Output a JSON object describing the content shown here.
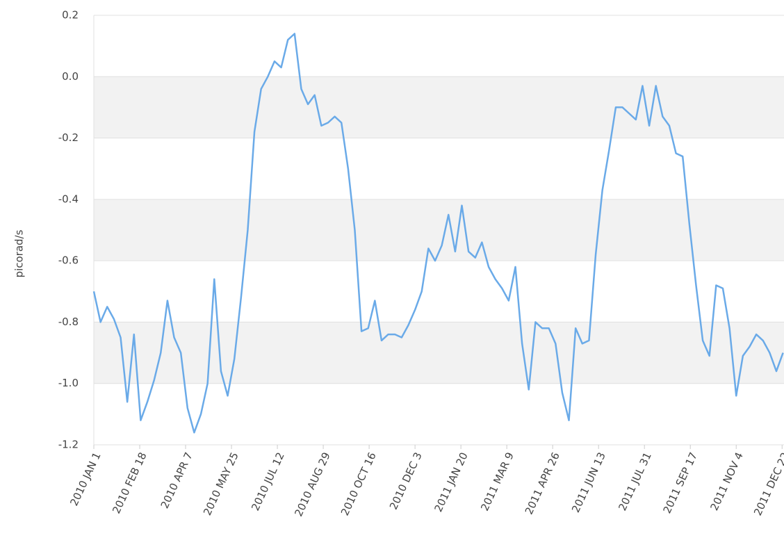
{
  "chart_data": {
    "type": "line",
    "y_label": "picorad/s",
    "x": [
      "2010-01-01",
      "2010-01-08",
      "2010-01-15",
      "2010-01-22",
      "2010-01-29",
      "2010-02-05",
      "2010-02-12",
      "2010-02-19",
      "2010-02-26",
      "2010-03-05",
      "2010-03-12",
      "2010-03-19",
      "2010-03-26",
      "2010-04-02",
      "2010-04-09",
      "2010-04-16",
      "2010-04-23",
      "2010-04-30",
      "2010-05-07",
      "2010-05-14",
      "2010-05-21",
      "2010-05-28",
      "2010-06-04",
      "2010-06-11",
      "2010-06-18",
      "2010-06-25",
      "2010-07-02",
      "2010-07-09",
      "2010-07-16",
      "2010-07-23",
      "2010-07-30",
      "2010-08-06",
      "2010-08-13",
      "2010-08-20",
      "2010-08-27",
      "2010-09-03",
      "2010-09-10",
      "2010-09-17",
      "2010-09-24",
      "2010-10-01",
      "2010-10-08",
      "2010-10-15",
      "2010-10-22",
      "2010-10-29",
      "2010-11-05",
      "2010-11-12",
      "2010-11-19",
      "2010-11-26",
      "2010-12-03",
      "2010-12-10",
      "2010-12-17",
      "2010-12-24",
      "2010-12-31",
      "2011-01-07",
      "2011-01-14",
      "2011-01-21",
      "2011-01-28",
      "2011-02-04",
      "2011-02-11",
      "2011-02-18",
      "2011-02-25",
      "2011-03-04",
      "2011-03-11",
      "2011-03-18",
      "2011-03-25",
      "2011-04-01",
      "2011-04-08",
      "2011-04-15",
      "2011-04-22",
      "2011-04-29",
      "2011-05-06",
      "2011-05-13",
      "2011-05-20",
      "2011-05-27",
      "2011-06-03",
      "2011-06-10",
      "2011-06-17",
      "2011-06-24",
      "2011-07-01",
      "2011-07-08",
      "2011-07-15",
      "2011-07-22",
      "2011-07-29",
      "2011-08-05",
      "2011-08-12",
      "2011-08-19",
      "2011-08-26",
      "2011-09-02",
      "2011-09-09",
      "2011-09-16",
      "2011-09-23",
      "2011-09-30",
      "2011-10-07",
      "2011-10-14",
      "2011-10-21",
      "2011-10-28",
      "2011-11-04",
      "2011-11-11",
      "2011-11-18",
      "2011-11-25",
      "2011-12-02",
      "2011-12-09",
      "2011-12-16",
      "2011-12-23"
    ],
    "series": [
      {
        "color": "#6aaae8",
        "values": [
          -0.7,
          -0.8,
          -0.75,
          -0.79,
          -0.85,
          -1.06,
          -0.84,
          -1.12,
          -1.06,
          -0.99,
          -0.9,
          -0.73,
          -0.85,
          -0.9,
          -1.08,
          -1.16,
          -1.1,
          -1.0,
          -0.66,
          -0.96,
          -1.04,
          -0.92,
          -0.72,
          -0.5,
          -0.18,
          -0.04,
          0.0,
          0.05,
          0.03,
          0.12,
          0.14,
          -0.04,
          -0.09,
          -0.06,
          -0.16,
          -0.15,
          -0.13,
          -0.15,
          -0.3,
          -0.5,
          -0.83,
          -0.82,
          -0.73,
          -0.86,
          -0.84,
          -0.84,
          -0.85,
          -0.81,
          -0.76,
          -0.7,
          -0.56,
          -0.6,
          -0.55,
          -0.45,
          -0.57,
          -0.42,
          -0.57,
          -0.59,
          -0.54,
          -0.62,
          -0.66,
          -0.69,
          -0.73,
          -0.62,
          -0.87,
          -1.02,
          -0.8,
          -0.82,
          -0.82,
          -0.87,
          -1.03,
          -1.12,
          -0.82,
          -0.87,
          -0.86,
          -0.58,
          -0.37,
          -0.24,
          -0.1,
          -0.1,
          -0.12,
          -0.14,
          -0.03,
          -0.16,
          -0.03,
          -0.13,
          -0.16,
          -0.25,
          -0.26,
          -0.48,
          -0.68,
          -0.86,
          -0.91,
          -0.68,
          -0.69,
          -0.82,
          -1.04,
          -0.91,
          -0.88,
          -0.84,
          -0.86,
          -0.9,
          -0.96,
          -0.9
        ]
      }
    ],
    "xlim": [
      "2010-01-01",
      "2011-12-24"
    ],
    "xticks": [
      {
        "value": "2010-01-01",
        "label": "2010 JAN 1"
      },
      {
        "value": "2010-02-18",
        "label": "2010 FEB 18"
      },
      {
        "value": "2010-04-07",
        "label": "2010 APR 7"
      },
      {
        "value": "2010-05-25",
        "label": "2010 MAY 25"
      },
      {
        "value": "2010-07-12",
        "label": "2010 JUL 12"
      },
      {
        "value": "2010-08-29",
        "label": "2010 AUG 29"
      },
      {
        "value": "2010-10-16",
        "label": "2010 OCT 16"
      },
      {
        "value": "2010-12-03",
        "label": "2010 DEC 3"
      },
      {
        "value": "2011-01-20",
        "label": "2011 JAN 20"
      },
      {
        "value": "2011-03-09",
        "label": "2011 MAR 9"
      },
      {
        "value": "2011-04-26",
        "label": "2011 APR 26"
      },
      {
        "value": "2011-06-13",
        "label": "2011 JUN 13"
      },
      {
        "value": "2011-07-31",
        "label": "2011 JUL 31"
      },
      {
        "value": "2011-09-17",
        "label": "2011 SEP 17"
      },
      {
        "value": "2011-11-04",
        "label": "2011 NOV 4"
      },
      {
        "value": "2011-12-22",
        "label": "2011 DEC 22"
      }
    ],
    "ylim": [
      -1.2,
      0.2
    ],
    "yticks": [
      0.2,
      {
        "value": 0,
        "label": "0.0"
      },
      -0.2,
      -0.4,
      -0.6,
      -0.8,
      {
        "value": -1,
        "label": "-1.0"
      },
      -1.2
    ],
    "grid": "bands"
  }
}
